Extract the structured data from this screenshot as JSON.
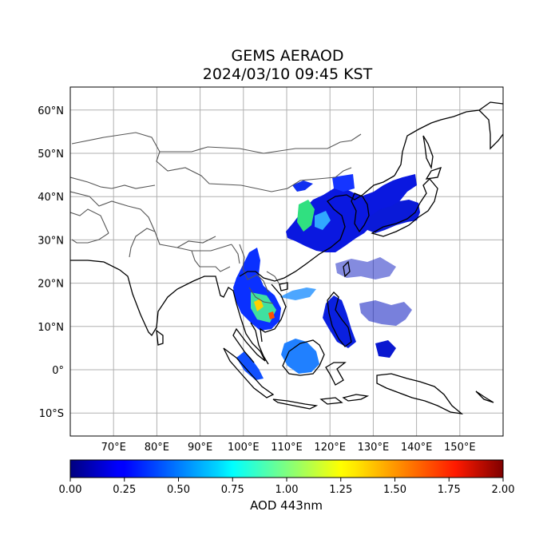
{
  "title": "GEMS AERAOD",
  "subtitle": "2024/03/10 09:45 KST",
  "map": {
    "lon_range": [
      60,
      160
    ],
    "lat_range": [
      -15,
      66
    ],
    "lat_ticks": [
      {
        "value": 60,
        "label": "60°N"
      },
      {
        "value": 50,
        "label": "50°N"
      },
      {
        "value": 40,
        "label": "40°N"
      },
      {
        "value": 30,
        "label": "30°N"
      },
      {
        "value": 20,
        "label": "20°N"
      },
      {
        "value": 10,
        "label": "10°N"
      },
      {
        "value": 0,
        "label": "0°"
      },
      {
        "value": -10,
        "label": "10°S"
      }
    ],
    "lon_ticks": [
      {
        "value": 70,
        "label": "70°E"
      },
      {
        "value": 80,
        "label": "80°E"
      },
      {
        "value": 90,
        "label": "90°E"
      },
      {
        "value": 100,
        "label": "100°E"
      },
      {
        "value": 110,
        "label": "110°E"
      },
      {
        "value": 120,
        "label": "120°E"
      },
      {
        "value": 130,
        "label": "130°E"
      },
      {
        "value": 140,
        "label": "140°E"
      },
      {
        "value": 150,
        "label": "150°E"
      }
    ],
    "gridlines": true,
    "colors": {
      "coastline": "#000000",
      "borders": "#555555",
      "grid": "#b0b0b0"
    }
  },
  "colorbar": {
    "label": "AOD 443nm",
    "min": 0,
    "max": 2,
    "colormap": "jet",
    "ticks": [
      "0.00",
      "0.25",
      "0.50",
      "0.75",
      "1.00",
      "1.25",
      "1.50",
      "1.75",
      "2.00"
    ]
  }
}
